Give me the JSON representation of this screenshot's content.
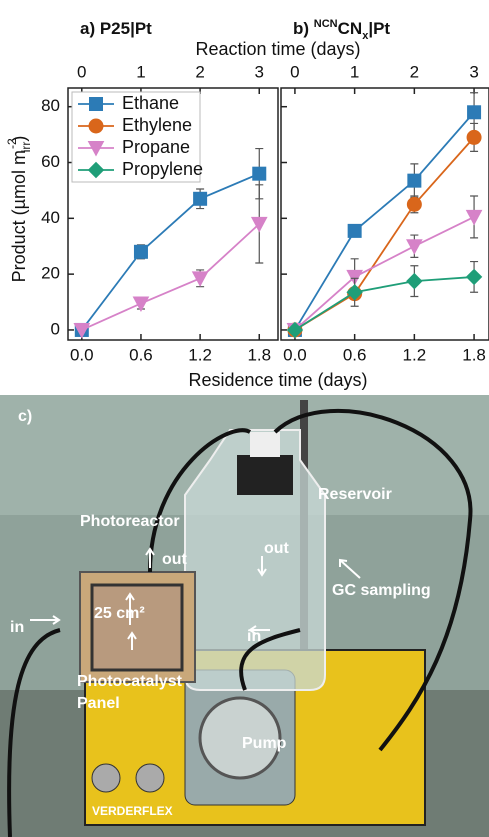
{
  "chart_data": [
    {
      "type": "line",
      "title": [
        {
          "text": "a) P25|Pt"
        }
      ],
      "xlabel": "Residence time (days)",
      "x2label": "Reaction time (days)",
      "ylabel": {
        "text": "Product (µmol m",
        "sub": "irr",
        "sup": "-2",
        "end": ")"
      },
      "x": [
        0,
        0.6,
        1.2,
        1.8
      ],
      "xlim": [
        -0.14,
        1.99
      ],
      "xticks": [
        {
          "value": 0,
          "label": "0.0"
        },
        0.6,
        1.2,
        1.8
      ],
      "x2lim": [
        -0.233,
        3.317
      ],
      "x2ticks": [
        0,
        1,
        2,
        3
      ],
      "ylim": [
        -3.6,
        86.7
      ],
      "yticks": [
        0,
        20,
        40,
        60,
        80
      ],
      "grid": false,
      "legend": "upper left",
      "series": [
        {
          "name": "Ethane",
          "color": "#2c7bb6",
          "marker": "square",
          "values": [
            0,
            28,
            47,
            56
          ],
          "errors": [
            0,
            2.5,
            3.5,
            9
          ]
        },
        {
          "name": "Ethylene",
          "color": "#d9661b",
          "marker": "circle",
          "values": [
            null,
            null,
            null,
            null
          ],
          "errors": [
            null,
            null,
            null,
            null
          ]
        },
        {
          "name": "Propane",
          "color": "#d682c8",
          "marker": "triangle-down",
          "values": [
            0,
            9.5,
            18.5,
            38
          ],
          "errors": [
            0,
            2,
            3,
            14
          ]
        },
        {
          "name": "Propylene",
          "color": "#1f9e78",
          "marker": "diamond",
          "values": [
            null,
            null,
            null,
            null
          ],
          "errors": [
            null,
            null,
            null,
            null
          ]
        }
      ]
    },
    {
      "type": "line",
      "title": [
        {
          "text": "b) "
        },
        {
          "text": "NCN",
          "style": "sup"
        },
        {
          "text": "CN"
        },
        {
          "text": "x",
          "style": "sub"
        },
        {
          "text": "|Pt"
        }
      ],
      "x": [
        0,
        0.6,
        1.2,
        1.8
      ],
      "xlim": [
        -0.14,
        1.95
      ],
      "xticks": [
        {
          "value": 0,
          "label": "0.0"
        },
        0.6,
        1.2,
        1.8
      ],
      "x2lim": [
        -0.233,
        3.25
      ],
      "x2ticks": [
        0,
        1,
        2,
        3
      ],
      "ylim": [
        -3.6,
        86.7
      ],
      "yticks": [
        0,
        20,
        40,
        60,
        80
      ],
      "grid": false,
      "series": [
        {
          "name": "Ethane",
          "color": "#2c7bb6",
          "marker": "square",
          "values": [
            0,
            35.5,
            53.5,
            78
          ],
          "errors": [
            0,
            1.5,
            6,
            7
          ]
        },
        {
          "name": "Ethylene",
          "color": "#d9661b",
          "marker": "circle",
          "values": [
            0,
            13,
            45,
            69
          ],
          "errors": [
            0,
            1.5,
            3,
            5
          ]
        },
        {
          "name": "Propane",
          "color": "#d682c8",
          "marker": "triangle-down",
          "values": [
            0,
            19,
            30,
            40.5
          ],
          "errors": [
            0,
            6.5,
            4,
            7.5
          ]
        },
        {
          "name": "Propylene",
          "color": "#1f9e78",
          "marker": "diamond",
          "values": [
            0,
            13.5,
            17.5,
            19
          ],
          "errors": [
            0,
            5,
            5.5,
            5.5
          ]
        }
      ]
    }
  ],
  "photo": {
    "panel_label": "c)",
    "photoreactor": "Photoreactor",
    "reactor_out": "out",
    "reservoir": "Reservoir",
    "reservoir_out": "out",
    "gc": "GC sampling",
    "reactor_in": "in",
    "area": "25 cm²",
    "reservoir_in": "in",
    "panel_1": "Photocatalyst",
    "panel_2": "Panel",
    "pump": "Pump",
    "brand": "VERDERFLEX"
  }
}
